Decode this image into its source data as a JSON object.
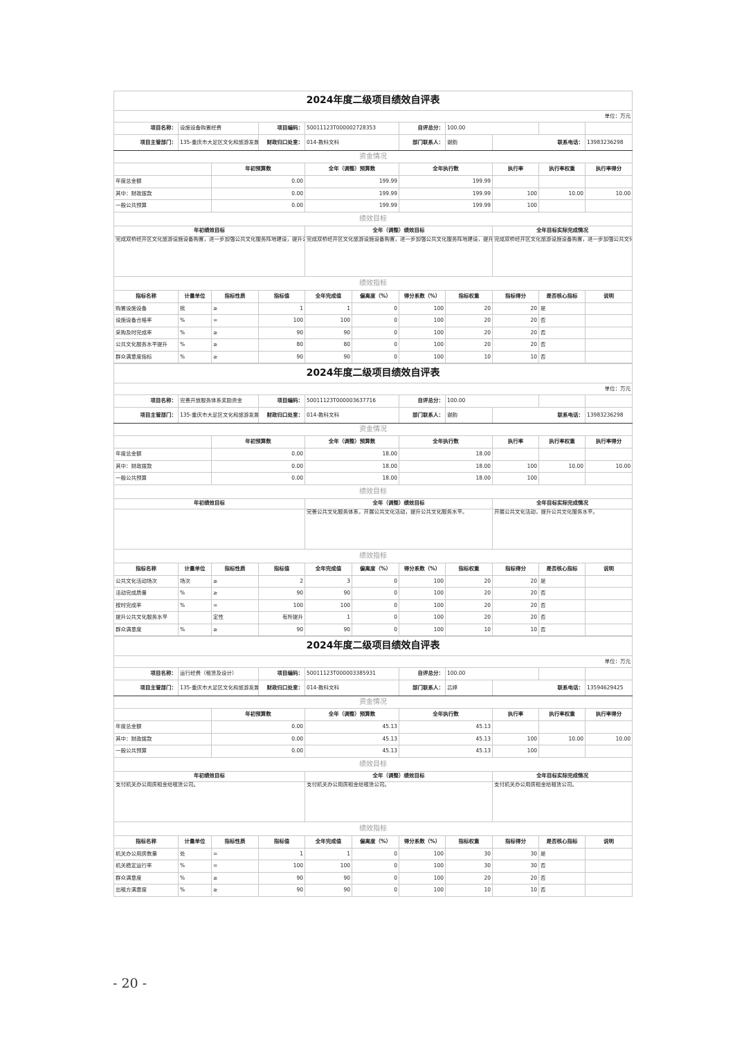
{
  "forms": [
    {
      "title": "2024年度二级项目绩效自评表",
      "unit": "单位：万元",
      "info": {
        "name_label": "项目名称：",
        "name": "设施设备购置经费",
        "code_label": "项目编码：",
        "code": "50011123T000002728353",
        "score_label": "自评总分：",
        "score": "100.00",
        "dept_label": "项目主管部门：",
        "dept": "135-重庆市大足区文化和旅游发展委员会",
        "office_label": "财政归口处室：",
        "office": "014-教科文科",
        "contact_label": "部门联系人：",
        "contact": "谢韵",
        "phone_label": "联系电话：",
        "phone": "13983236298"
      },
      "funds_title": "资金情况",
      "funds_headers": [
        "",
        "年初预算数",
        "全年（调整）预算数",
        "全年执行数",
        "执行率",
        "执行率权重",
        "执行率得分"
      ],
      "funds_rows": [
        [
          "年度总金额",
          "0.00",
          "199.99",
          "199.99",
          "",
          "",
          ""
        ],
        [
          "其中：财政拨款",
          "0.00",
          "199.99",
          "199.99",
          "100",
          "10.00",
          "10.00"
        ],
        [
          "一般公共预算",
          "0.00",
          "199.99",
          "199.99",
          "100",
          "",
          ""
        ]
      ],
      "goals_title": "绩效目标",
      "goals_headers": [
        "年初绩效目标",
        "全年（调整）绩效目标",
        "全年目标实际完成情况"
      ],
      "goals": [
        "完成双桥经开区文化旅游设施设备购置，进一步加强公共文化服务阵地建设，提升公共文化服务水平。",
        "完成双桥经开区文化旅游设施设备购置，进一步加强公共文化服务阵地建设，提升公共文化服务水平。",
        "完成双桥经开区文化旅游设施设备购置，进一步加强公共文化服务阵地建设，提升公共文化服务水平。"
      ],
      "ind_title": "绩效指标",
      "ind_headers": [
        "指标名称",
        "计量单位",
        "指标性质",
        "指标值",
        "全年完成值",
        "偏离度（%）",
        "得分系数（%）",
        "指标权重",
        "指标得分",
        "是否核心指标",
        "说明"
      ],
      "ind_rows": [
        [
          "购置设施设备",
          "批",
          "≥",
          "1",
          "1",
          "0",
          "100",
          "20",
          "20",
          "是",
          ""
        ],
        [
          "设施设备合格率",
          "%",
          "=",
          "100",
          "100",
          "0",
          "100",
          "20",
          "20",
          "否",
          ""
        ],
        [
          "采购及时完成率",
          "%",
          "≥",
          "90",
          "90",
          "0",
          "100",
          "20",
          "20",
          "否",
          ""
        ],
        [
          "公共文化服务水平提升",
          "%",
          "≥",
          "80",
          "80",
          "0",
          "100",
          "20",
          "20",
          "否",
          ""
        ],
        [
          "群众满意度指标",
          "%",
          "≥",
          "90",
          "90",
          "0",
          "100",
          "10",
          "10",
          "否",
          ""
        ]
      ]
    },
    {
      "title": "2024年度二级项目绩效自评表",
      "unit": "单位：万元",
      "info": {
        "name_label": "项目名称：",
        "name": "完善开放服务体系奖励资金",
        "code_label": "项目编码：",
        "code": "50011123T000003637716",
        "score_label": "自评总分：",
        "score": "100.00",
        "dept_label": "项目主管部门：",
        "dept": "135-重庆市大足区文化和旅游发展委员会",
        "office_label": "财政归口处室：",
        "office": "014-教科文科",
        "contact_label": "部门联系人：",
        "contact": "谢韵",
        "phone_label": "联系电话：",
        "phone": "13983236298"
      },
      "funds_title": "资金情况",
      "funds_headers": [
        "",
        "年初预算数",
        "全年（调整）预算数",
        "全年执行数",
        "执行率",
        "执行率权重",
        "执行率得分"
      ],
      "funds_rows": [
        [
          "年度总金额",
          "0.00",
          "18.00",
          "18.00",
          "",
          "",
          ""
        ],
        [
          "其中：财政拨款",
          "0.00",
          "18.00",
          "18.00",
          "100",
          "10.00",
          "10.00"
        ],
        [
          "一般公共预算",
          "0.00",
          "18.00",
          "18.00",
          "100",
          "",
          ""
        ]
      ],
      "goals_title": "绩效目标",
      "goals_headers": [
        "年初绩效目标",
        "全年（调整）绩效目标",
        "全年目标实际完成情况"
      ],
      "goals": [
        "",
        "完善公共文化服务体系，开展公共文化活动，提升公共文化服务水平。",
        "开展公共文化活动，提升公共文化服务水平。"
      ],
      "ind_title": "绩效指标",
      "ind_headers": [
        "指标名称",
        "计量单位",
        "指标性质",
        "指标值",
        "全年完成值",
        "偏离度（%）",
        "得分系数（%）",
        "指标权重",
        "指标得分",
        "是否核心指标",
        "说明"
      ],
      "ind_rows": [
        [
          "公共文化活动场次",
          "场次",
          "≥",
          "2",
          "3",
          "0",
          "100",
          "20",
          "20",
          "是",
          ""
        ],
        [
          "活动完成质量",
          "%",
          "≥",
          "90",
          "90",
          "0",
          "100",
          "20",
          "20",
          "否",
          ""
        ],
        [
          "按时完成率",
          "%",
          "=",
          "100",
          "100",
          "0",
          "100",
          "20",
          "20",
          "否",
          ""
        ],
        [
          "提升公共文化服务水平",
          "",
          "定性",
          "有所提升",
          "1",
          "0",
          "100",
          "20",
          "20",
          "否",
          ""
        ],
        [
          "群众满意度",
          "%",
          "≥",
          "90",
          "90",
          "0",
          "100",
          "10",
          "10",
          "否",
          ""
        ]
      ]
    },
    {
      "title": "2024年度二级项目绩效自评表",
      "unit": "单位：万元",
      "info": {
        "name_label": "项目名称：",
        "name": "运行经费（租赁及设计）",
        "code_label": "项目编码：",
        "code": "50011123T000003385931",
        "score_label": "自评总分：",
        "score": "100.00",
        "dept_label": "项目主管部门：",
        "dept": "135-重庆市大足区文化和旅游发展委员会",
        "office_label": "财政归口处室：",
        "office": "014-教科文科",
        "contact_label": "部门联系人：",
        "contact": "吕婷",
        "phone_label": "联系电话：",
        "phone": "13594629425"
      },
      "funds_title": "资金情况",
      "funds_headers": [
        "",
        "年初预算数",
        "全年（调整）预算数",
        "全年执行数",
        "执行率",
        "执行率权重",
        "执行率得分"
      ],
      "funds_rows": [
        [
          "年度总金额",
          "0.00",
          "45.13",
          "45.13",
          "",
          "",
          ""
        ],
        [
          "其中：财政拨款",
          "0.00",
          "45.13",
          "45.13",
          "100",
          "10.00",
          "10.00"
        ],
        [
          "一般公共预算",
          "0.00",
          "45.13",
          "45.13",
          "100",
          "",
          ""
        ]
      ],
      "goals_title": "绩效目标",
      "goals_headers": [
        "年初绩效目标",
        "全年（调整）绩效目标",
        "全年目标实际完成情况"
      ],
      "goals": [
        "支付机关办公用房租金给租赁公司。",
        "支付机关办公用房租金给租赁公司。",
        "支付机关办公用房租金给租赁公司。"
      ],
      "ind_title": "绩效指标",
      "ind_headers": [
        "指标名称",
        "计量单位",
        "指标性质",
        "指标值",
        "全年完成值",
        "偏离度（%）",
        "得分系数（%）",
        "指标权重",
        "指标得分",
        "是否核心指标",
        "说明"
      ],
      "ind_rows": [
        [
          "机关办公用房数量",
          "处",
          "=",
          "1",
          "1",
          "0",
          "100",
          "30",
          "30",
          "是",
          ""
        ],
        [
          "机关稳定运行率",
          "%",
          "=",
          "100",
          "100",
          "0",
          "100",
          "30",
          "30",
          "否",
          ""
        ],
        [
          "群众满意度",
          "%",
          "≥",
          "90",
          "90",
          "0",
          "100",
          "20",
          "20",
          "否",
          ""
        ],
        [
          "出租方满意度",
          "%",
          "≥",
          "90",
          "90",
          "0",
          "100",
          "10",
          "10",
          "否",
          ""
        ]
      ]
    }
  ],
  "footer": {
    "page_number": "- 20 -"
  }
}
